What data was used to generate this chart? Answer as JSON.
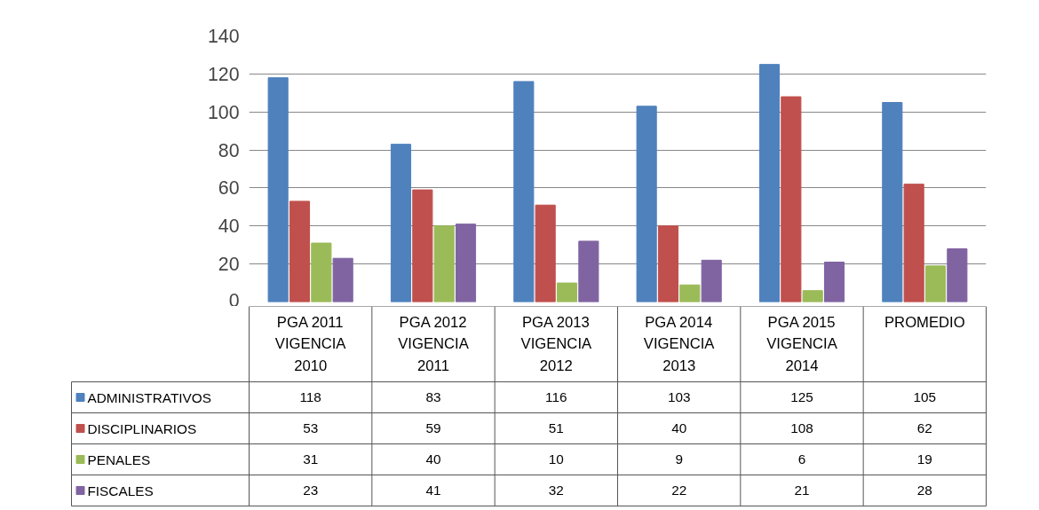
{
  "chart_data": {
    "type": "bar",
    "categories": [
      "PGA 2011\nVIGENCIA\n2010",
      "PGA 2012\nVIGENCIA\n2011",
      "PGA 2013\nVIGENCIA\n2012",
      "PGA 2014\nVIGENCIA\n2013",
      "PGA 2015\nVIGENCIA\n2014",
      "PROMEDIO"
    ],
    "series": [
      {
        "name": "ADMINISTRATIVOS",
        "color": "#4f81bd",
        "values": [
          118,
          83,
          116,
          103,
          125,
          105
        ]
      },
      {
        "name": "DISCIPLINARIOS",
        "color": "#c0504d",
        "values": [
          53,
          59,
          51,
          40,
          108,
          62
        ]
      },
      {
        "name": "PENALES",
        "color": "#9bbb59",
        "values": [
          31,
          40,
          10,
          9,
          6,
          19
        ]
      },
      {
        "name": "FISCALES",
        "color": "#8064a2",
        "values": [
          23,
          41,
          32,
          22,
          21,
          28
        ]
      }
    ],
    "ylim": [
      0,
      140
    ],
    "yticks": [
      0,
      20,
      40,
      60,
      80,
      100,
      120,
      140
    ],
    "grid": "y",
    "legend": "bottom",
    "data_labels": true
  }
}
